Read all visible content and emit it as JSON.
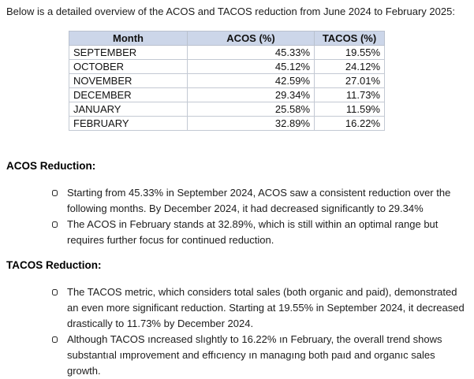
{
  "intro": "Below is a detailed overview of the ACOS and TACOS reduction from June 2024 to February 2025:",
  "table": {
    "headers": [
      "Month",
      "ACOS (%)",
      "TACOS (%)"
    ],
    "rows": [
      {
        "month": "SEPTEMBER",
        "acos": "45.33%",
        "tacos": "19.55%"
      },
      {
        "month": "OCTOBER",
        "acos": "45.12%",
        "tacos": "24.12%"
      },
      {
        "month": "NOVEMBER",
        "acos": "42.59%",
        "tacos": "27.01%"
      },
      {
        "month": "DECEMBER",
        "acos": "29.34%",
        "tacos": "11.73%"
      },
      {
        "month": "JANUARY",
        "acos": "25.58%",
        "tacos": "11.59%"
      },
      {
        "month": "FEBRUARY",
        "acos": "32.89%",
        "tacos": "16.22%"
      }
    ]
  },
  "sections": [
    {
      "heading": "ACOS Reduction:",
      "bullets": [
        "Starting from 45.33% in September 2024, ACOS saw a consistent reduction over the following months. By December 2024, it had decreased significantly to 29.34%",
        "The ACOS in February stands at 32.89%, which is still within an optimal range but requires further focus for continued reduction."
      ]
    },
    {
      "heading": "TACOS Reduction:",
      "bullets": [
        "The TACOS metric, which considers total sales (both organic and paid), demonstrated an even more significant reduction. Starting at 19.55% in September 2024, it decreased drastically to 11.73% by December 2024.",
        "Although TACOS ıncreased slıghtly to 16.22% ın February, the overall trend shows substantıal ımprovement and effıcıency ın managıng both paıd and organıc sales growth."
      ]
    }
  ],
  "colors": {
    "table_header_bg": "#ccd6e9",
    "table_border": "#c3c9d3",
    "text": "#1c1c1c"
  }
}
